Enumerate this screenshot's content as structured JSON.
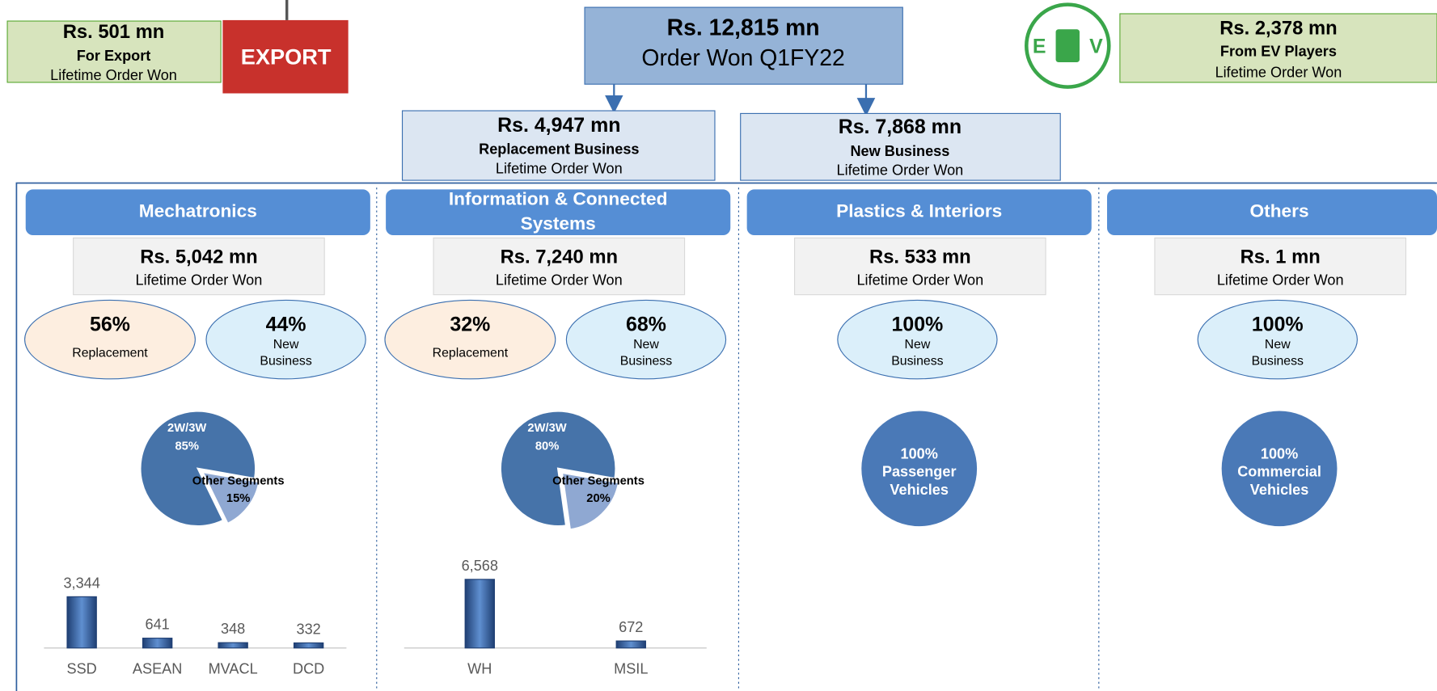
{
  "export": {
    "amount": "Rs. 501 mn",
    "label": "For Export",
    "caption": "Lifetime Order Won",
    "image_text": "EXPORT"
  },
  "total": {
    "amount": "Rs. 12,815 mn",
    "label": "Order Won Q1FY22"
  },
  "replacement": {
    "amount": "Rs. 4,947 mn",
    "label": "Replacement Business",
    "caption": "Lifetime Order Won"
  },
  "new_business": {
    "amount": "Rs. 7,868 mn",
    "label": "New Business",
    "caption": "Lifetime Order Won"
  },
  "ev": {
    "logo": [
      "E",
      "V"
    ],
    "amount": "Rs. 2,378 mn",
    "label": "From EV Players",
    "caption": "Lifetime Order Won"
  },
  "segments": [
    {
      "title": "Mechatronics",
      "amount": "Rs. 5,042 mn",
      "caption": "Lifetime Order Won",
      "split": [
        {
          "value": 56,
          "value_label": "56%",
          "name": "Replacement"
        },
        {
          "value": 44,
          "value_label": "44%",
          "name": "New Business"
        }
      ],
      "pie": [
        {
          "name": "2W/3W",
          "value": 85,
          "value_label": "85%"
        },
        {
          "name": "Other Segments",
          "value": 15,
          "value_label": "15%"
        }
      ],
      "bar": {
        "categories": [
          "SSD",
          "ASEAN",
          "MVACL",
          "DCD"
        ],
        "values": [
          3344,
          641,
          348,
          332
        ],
        "value_labels": [
          "3,344",
          "641",
          "348",
          "332"
        ]
      }
    },
    {
      "title": "Information & Connected Systems",
      "amount": "Rs. 7,240 mn",
      "caption": "Lifetime Order Won",
      "split": [
        {
          "value": 32,
          "value_label": "32%",
          "name": "Replacement"
        },
        {
          "value": 68,
          "value_label": "68%",
          "name": "New Business"
        }
      ],
      "pie": [
        {
          "name": "2W/3W",
          "value": 80,
          "value_label": "80%"
        },
        {
          "name": "Other Segments",
          "value": 20,
          "value_label": "20%"
        }
      ],
      "bar": {
        "categories": [
          "WH",
          "MSIL"
        ],
        "values": [
          6568,
          672
        ],
        "value_labels": [
          "6,568",
          "672"
        ]
      }
    },
    {
      "title": "Plastics & Interiors",
      "amount": "Rs. 533 mn",
      "caption": "Lifetime Order Won",
      "split": [
        {
          "value": 100,
          "value_label": "100%",
          "name": "New Business"
        }
      ],
      "circle": {
        "value": 100,
        "value_label": "100%",
        "name": "Passenger Vehicles"
      }
    },
    {
      "title": "Others",
      "amount": "Rs. 1 mn",
      "caption": "Lifetime Order Won",
      "split": [
        {
          "value": 100,
          "value_label": "100%",
          "name": "New Business"
        }
      ],
      "circle": {
        "value": 100,
        "value_label": "100%",
        "name": "Commercial Vehicles"
      }
    }
  ]
}
